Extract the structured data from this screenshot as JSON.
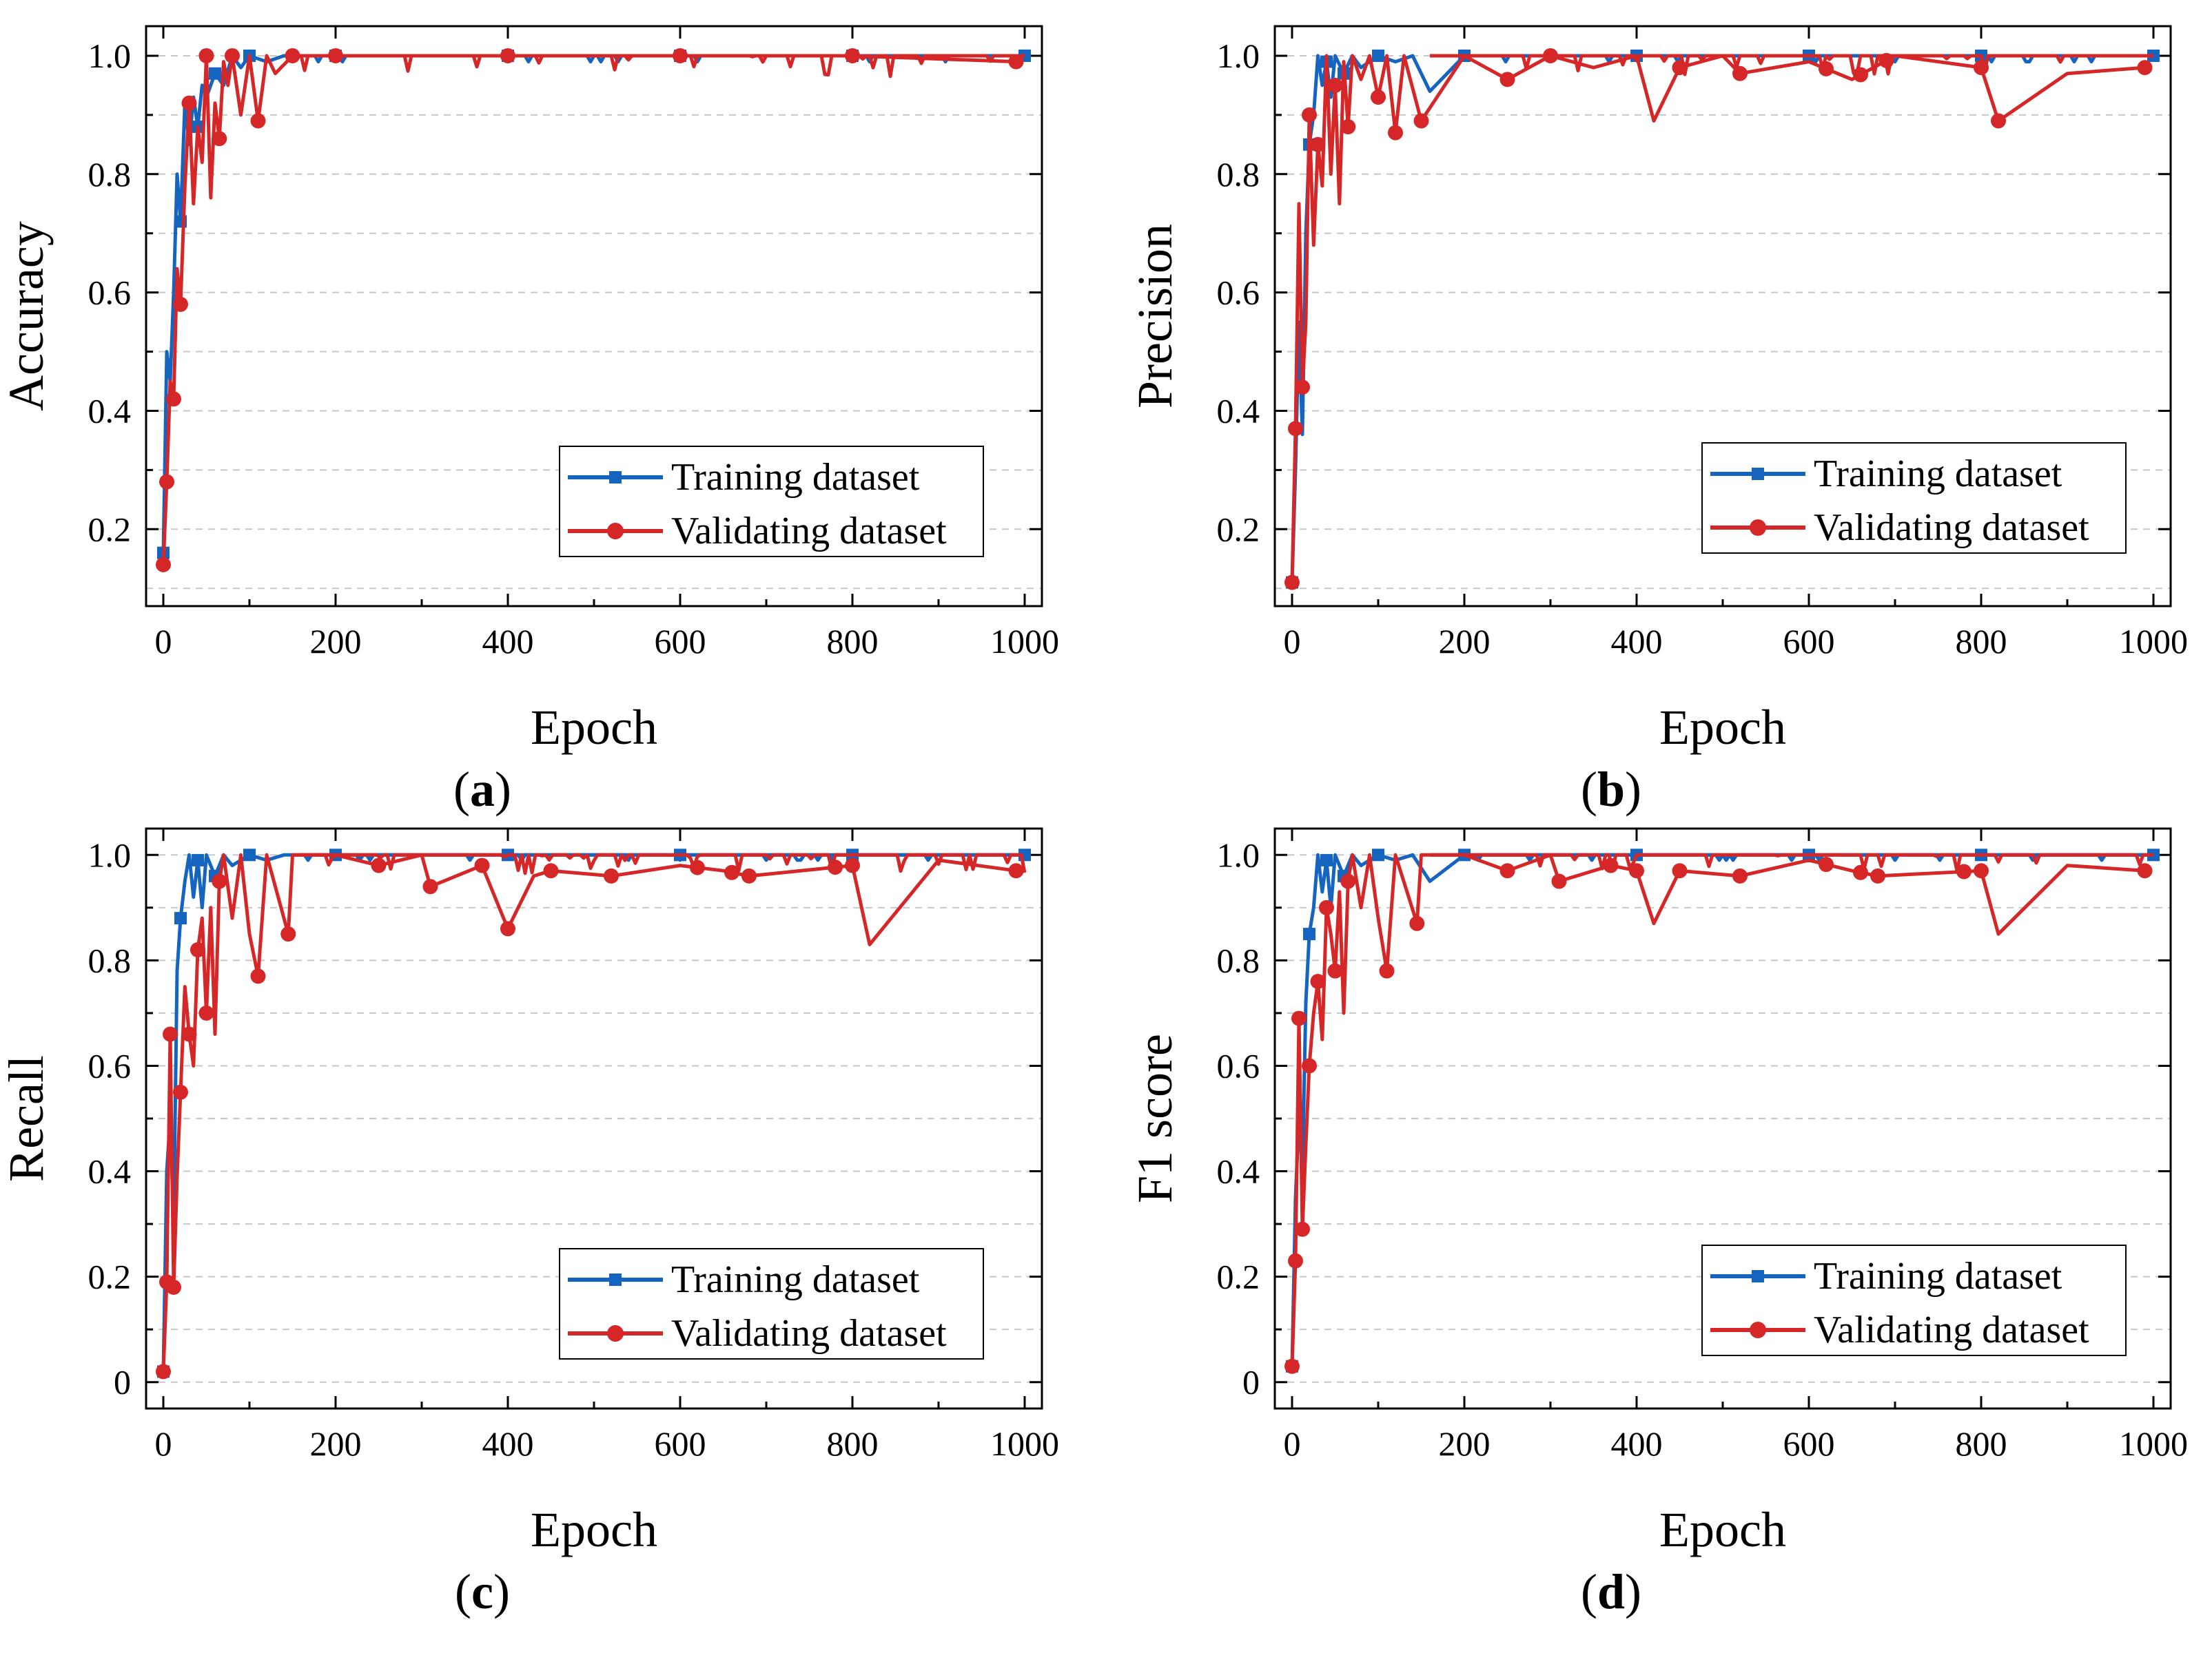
{
  "chart_data": [
    {
      "type": "line",
      "panel_label": "(a)",
      "panel_letter": "a",
      "title": "",
      "xlabel": "Epoch",
      "ylabel": "Accuracy",
      "xlim": [
        -20,
        1020
      ],
      "ylim": [
        0.07,
        1.05
      ],
      "x_ticks": [
        0,
        200,
        400,
        600,
        800,
        1000
      ],
      "x_tick_labels": [
        "0",
        "200",
        "400",
        "600",
        "800",
        "1000"
      ],
      "y_ticks": [
        0.2,
        0.4,
        0.6,
        0.8,
        1.0
      ],
      "y_tick_labels": [
        "0.2",
        "0.4",
        "0.6",
        "0.8",
        "1.0"
      ],
      "grid": true,
      "legend": {
        "position": "bottom-right",
        "entries": [
          "Training dataset",
          "Validating dataset"
        ]
      },
      "series": [
        {
          "name": "Training dataset",
          "color": "#1565c0",
          "marker": "square",
          "x": [
            0,
            4,
            8,
            12,
            16,
            20,
            25,
            30,
            35,
            40,
            45,
            50,
            60,
            70,
            80,
            90,
            100,
            120,
            140,
            160,
            200,
            400,
            600,
            800,
            1000
          ],
          "y": [
            0.16,
            0.5,
            0.45,
            0.6,
            0.8,
            0.72,
            0.92,
            0.85,
            0.93,
            0.88,
            0.95,
            0.93,
            0.97,
            0.95,
            1.0,
            0.98,
            1.0,
            0.99,
            1.0,
            1.0,
            1.0,
            1.0,
            1.0,
            1.0,
            1.0
          ],
          "marker_x": [
            0,
            20,
            40,
            60,
            100,
            200,
            400,
            600,
            800,
            1000
          ]
        },
        {
          "name": "Validating dataset",
          "color": "#d62728",
          "marker": "circle",
          "x": [
            0,
            4,
            8,
            12,
            16,
            20,
            25,
            30,
            35,
            40,
            45,
            50,
            55,
            60,
            65,
            70,
            75,
            80,
            90,
            100,
            110,
            120,
            130,
            150,
            200,
            400,
            600,
            800,
            990
          ],
          "y": [
            0.14,
            0.28,
            0.45,
            0.42,
            0.64,
            0.58,
            0.78,
            0.92,
            0.75,
            0.88,
            0.82,
            1.0,
            0.76,
            0.92,
            0.86,
            0.99,
            0.95,
            1.0,
            0.9,
            1.0,
            0.89,
            1.0,
            0.97,
            1.0,
            1.0,
            1.0,
            1.0,
            1.0,
            0.99
          ],
          "marker_x": [
            0,
            4,
            12,
            20,
            30,
            50,
            65,
            80,
            110,
            150,
            200,
            400,
            600,
            800,
            990
          ]
        }
      ]
    },
    {
      "type": "line",
      "panel_label": "(b)",
      "panel_letter": "b",
      "title": "",
      "xlabel": "Epoch",
      "ylabel": "Precision",
      "xlim": [
        -20,
        1020
      ],
      "ylim": [
        0.07,
        1.05
      ],
      "x_ticks": [
        0,
        200,
        400,
        600,
        800,
        1000
      ],
      "x_tick_labels": [
        "0",
        "200",
        "400",
        "600",
        "800",
        "1000"
      ],
      "y_ticks": [
        0.2,
        0.4,
        0.6,
        0.8,
        1.0
      ],
      "y_tick_labels": [
        "0.2",
        "0.4",
        "0.6",
        "0.8",
        "1.0"
      ],
      "grid": true,
      "legend": {
        "position": "bottom-right",
        "entries": [
          "Training dataset",
          "Validating dataset"
        ]
      },
      "series": [
        {
          "name": "Training dataset",
          "color": "#1565c0",
          "marker": "square",
          "x": [
            0,
            4,
            8,
            12,
            16,
            20,
            25,
            30,
            35,
            40,
            45,
            50,
            60,
            70,
            80,
            100,
            120,
            140,
            160,
            200,
            400,
            600,
            800,
            1000
          ],
          "y": [
            0.11,
            0.3,
            0.55,
            0.36,
            0.7,
            0.85,
            0.9,
            1.0,
            0.95,
            0.99,
            0.93,
            1.0,
            0.97,
            1.0,
            0.98,
            1.0,
            0.99,
            1.0,
            0.94,
            1.0,
            1.0,
            1.0,
            1.0,
            1.0
          ],
          "marker_x": [
            0,
            20,
            40,
            60,
            100,
            200,
            400,
            600,
            800,
            1000
          ]
        },
        {
          "name": "Validating dataset",
          "color": "#d62728",
          "marker": "circle",
          "x": [
            0,
            4,
            8,
            12,
            16,
            20,
            25,
            30,
            35,
            40,
            45,
            50,
            55,
            60,
            65,
            70,
            80,
            90,
            100,
            110,
            120,
            130,
            150,
            200,
            250,
            300,
            350,
            400,
            420,
            450,
            500,
            520,
            600,
            650,
            700,
            800,
            820,
            900,
            990
          ],
          "y": [
            0.11,
            0.37,
            0.75,
            0.44,
            0.55,
            0.9,
            0.68,
            0.85,
            0.78,
            1.0,
            0.8,
            0.95,
            0.75,
            0.99,
            0.88,
            1.0,
            0.96,
            1.0,
            0.93,
            1.0,
            0.87,
            1.0,
            0.89,
            1.0,
            0.96,
            1.0,
            0.98,
            1.0,
            0.89,
            0.98,
            1.0,
            0.97,
            0.99,
            0.96,
            1.0,
            0.98,
            0.89,
            0.97,
            0.98
          ],
          "marker_x": [
            0,
            4,
            12,
            20,
            30,
            50,
            65,
            100,
            120,
            150,
            250,
            300,
            450,
            520,
            620,
            660,
            690,
            800,
            820,
            990
          ]
        }
      ]
    },
    {
      "type": "line",
      "panel_label": "(c)",
      "panel_letter": "c",
      "title": "",
      "xlabel": "Epoch",
      "ylabel": "Recall",
      "xlim": [
        -20,
        1020
      ],
      "ylim": [
        -0.05,
        1.05
      ],
      "x_ticks": [
        0,
        200,
        400,
        600,
        800,
        1000
      ],
      "x_tick_labels": [
        "0",
        "200",
        "400",
        "600",
        "800",
        "1000"
      ],
      "y_ticks": [
        0,
        0.2,
        0.4,
        0.6,
        0.8,
        1.0
      ],
      "y_tick_labels": [
        "0",
        "0.2",
        "0.4",
        "0.6",
        "0.8",
        "1.0"
      ],
      "grid": true,
      "legend": {
        "position": "bottom-right",
        "entries": [
          "Training dataset",
          "Validating dataset"
        ]
      },
      "series": [
        {
          "name": "Training dataset",
          "color": "#1565c0",
          "marker": "square",
          "x": [
            0,
            4,
            8,
            12,
            16,
            20,
            25,
            30,
            35,
            40,
            45,
            50,
            60,
            70,
            80,
            100,
            120,
            140,
            160,
            200,
            400,
            600,
            800,
            1000
          ],
          "y": [
            0.02,
            0.4,
            0.5,
            0.3,
            0.78,
            0.88,
            0.95,
            1.0,
            0.92,
            0.99,
            0.9,
            1.0,
            0.96,
            1.0,
            0.98,
            1.0,
            0.99,
            1.0,
            1.0,
            1.0,
            1.0,
            1.0,
            1.0,
            1.0
          ],
          "marker_x": [
            0,
            20,
            40,
            60,
            100,
            200,
            400,
            600,
            800,
            1000
          ]
        },
        {
          "name": "Validating dataset",
          "color": "#d62728",
          "marker": "circle",
          "x": [
            0,
            4,
            8,
            12,
            16,
            20,
            25,
            30,
            35,
            40,
            45,
            50,
            55,
            60,
            65,
            70,
            80,
            90,
            100,
            110,
            120,
            145,
            150,
            200,
            250,
            300,
            310,
            370,
            400,
            430,
            450,
            520,
            600,
            650,
            680,
            800,
            820,
            900,
            990
          ],
          "y": [
            0.02,
            0.19,
            0.66,
            0.18,
            0.39,
            0.55,
            0.75,
            0.66,
            0.6,
            0.82,
            0.88,
            0.7,
            0.9,
            0.66,
            0.95,
            1.0,
            0.88,
            1.0,
            0.85,
            0.77,
            1.0,
            0.85,
            1.0,
            1.0,
            0.98,
            1.0,
            0.94,
            0.98,
            0.86,
            0.96,
            0.97,
            0.96,
            0.98,
            0.97,
            0.96,
            0.98,
            0.83,
            0.99,
            0.97
          ],
          "marker_x": [
            0,
            4,
            8,
            12,
            20,
            30,
            40,
            50,
            65,
            110,
            145,
            250,
            310,
            370,
            400,
            450,
            520,
            620,
            660,
            680,
            780,
            800,
            990
          ]
        }
      ]
    },
    {
      "type": "line",
      "panel_label": "(d)",
      "panel_letter": "d",
      "title": "",
      "xlabel": "Epoch",
      "ylabel": "F1 score",
      "xlim": [
        -20,
        1020
      ],
      "ylim": [
        -0.05,
        1.05
      ],
      "x_ticks": [
        0,
        200,
        400,
        600,
        800,
        1000
      ],
      "x_tick_labels": [
        "0",
        "200",
        "400",
        "600",
        "800",
        "1000"
      ],
      "y_ticks": [
        0,
        0.2,
        0.4,
        0.6,
        0.8,
        1.0
      ],
      "y_tick_labels": [
        "0",
        "0.2",
        "0.4",
        "0.6",
        "0.8",
        "1.0"
      ],
      "grid": true,
      "legend": {
        "position": "bottom-right",
        "entries": [
          "Training dataset",
          "Validating dataset"
        ]
      },
      "series": [
        {
          "name": "Training dataset",
          "color": "#1565c0",
          "marker": "square",
          "x": [
            0,
            4,
            8,
            12,
            16,
            20,
            25,
            30,
            35,
            40,
            45,
            50,
            60,
            70,
            80,
            100,
            120,
            140,
            160,
            200,
            400,
            600,
            800,
            1000
          ],
          "y": [
            0.03,
            0.35,
            0.5,
            0.4,
            0.72,
            0.85,
            0.9,
            1.0,
            0.93,
            0.99,
            0.9,
            1.0,
            0.96,
            1.0,
            0.98,
            1.0,
            0.99,
            1.0,
            0.95,
            1.0,
            1.0,
            1.0,
            1.0,
            1.0
          ],
          "marker_x": [
            0,
            20,
            40,
            60,
            100,
            200,
            400,
            600,
            800,
            1000
          ]
        },
        {
          "name": "Validating dataset",
          "color": "#d62728",
          "marker": "circle",
          "x": [
            0,
            4,
            8,
            12,
            16,
            20,
            25,
            30,
            35,
            40,
            45,
            50,
            55,
            60,
            65,
            70,
            80,
            90,
            100,
            110,
            120,
            145,
            150,
            200,
            250,
            300,
            310,
            370,
            400,
            420,
            450,
            520,
            600,
            650,
            680,
            800,
            820,
            900,
            990
          ],
          "y": [
            0.03,
            0.23,
            0.69,
            0.29,
            0.45,
            0.6,
            0.7,
            0.76,
            0.65,
            0.9,
            0.85,
            0.78,
            0.93,
            0.7,
            0.95,
            1.0,
            0.9,
            1.0,
            0.88,
            0.78,
            1.0,
            0.87,
            1.0,
            1.0,
            0.97,
            1.0,
            0.95,
            0.98,
            0.97,
            0.87,
            0.97,
            0.96,
            0.99,
            0.97,
            0.96,
            0.97,
            0.85,
            0.98,
            0.97
          ],
          "marker_x": [
            0,
            4,
            8,
            12,
            20,
            30,
            40,
            50,
            65,
            110,
            145,
            250,
            310,
            370,
            400,
            450,
            520,
            620,
            660,
            680,
            780,
            800,
            990
          ]
        }
      ]
    }
  ]
}
